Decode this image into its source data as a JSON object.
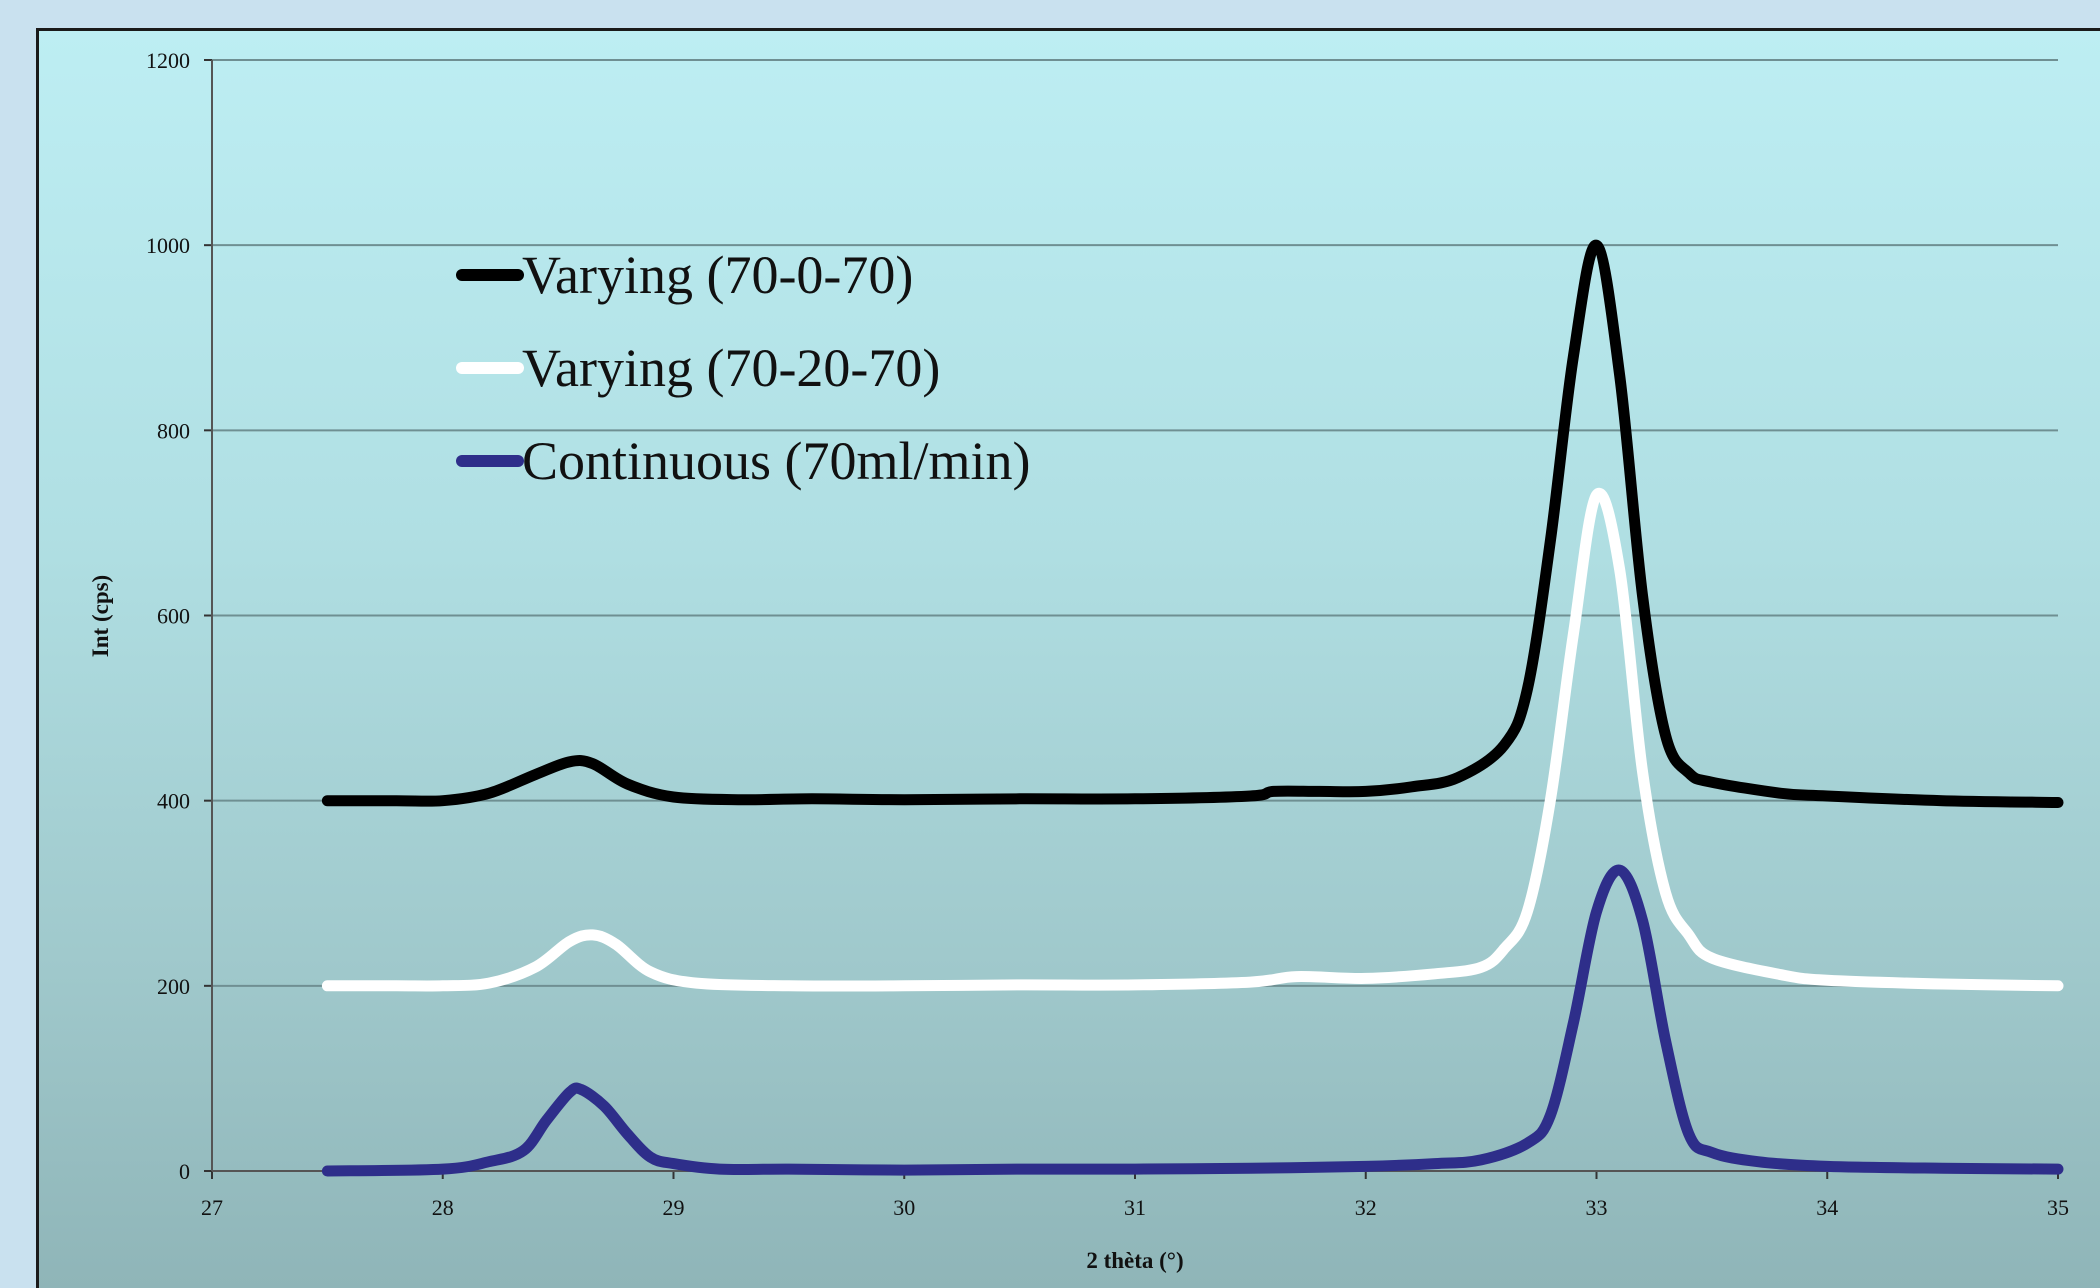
{
  "chart_data": {
    "type": "line",
    "xlabel": "2 thèta (°)",
    "ylabel": "Int (cps)",
    "xlim": [
      27,
      35
    ],
    "ylim": [
      0,
      1200
    ],
    "xticks": [
      "27",
      "28",
      "29",
      "30",
      "31",
      "32",
      "33",
      "34",
      "35"
    ],
    "yticks": [
      "0",
      "200",
      "400",
      "600",
      "800",
      "1000",
      "1200"
    ],
    "grid": "horizontal",
    "legend_position": "upper-left",
    "series": [
      {
        "name": "Varying (70-0-70)",
        "color": "#000000",
        "x": [
          27.5,
          27.8,
          28.0,
          28.2,
          28.4,
          28.55,
          28.65,
          28.8,
          29.0,
          29.3,
          29.6,
          30.0,
          30.5,
          31.0,
          31.5,
          31.6,
          31.8,
          32.0,
          32.2,
          32.4,
          32.6,
          32.7,
          32.8,
          32.9,
          33.0,
          33.1,
          33.2,
          33.3,
          33.4,
          33.5,
          33.8,
          34.0,
          34.5,
          35.0
        ],
        "y": [
          400,
          400,
          400,
          408,
          428,
          442,
          440,
          418,
          404,
          401,
          402,
          401,
          402,
          402,
          405,
          410,
          410,
          410,
          415,
          425,
          460,
          520,
          680,
          880,
          1000,
          860,
          620,
          470,
          430,
          420,
          408,
          405,
          400,
          398
        ]
      },
      {
        "name": "Varying (70-20-70)",
        "color": "#ffffff",
        "x": [
          27.5,
          27.8,
          28.0,
          28.2,
          28.4,
          28.55,
          28.65,
          28.75,
          28.9,
          29.1,
          29.5,
          30.0,
          30.5,
          31.0,
          31.5,
          31.7,
          32.0,
          32.3,
          32.5,
          32.6,
          32.7,
          32.8,
          32.9,
          33.0,
          33.1,
          33.2,
          33.3,
          33.4,
          33.5,
          33.8,
          34.0,
          34.5,
          35.0
        ],
        "y": [
          200,
          200,
          200,
          203,
          220,
          248,
          255,
          245,
          215,
          203,
          200,
          200,
          201,
          201,
          204,
          210,
          208,
          213,
          220,
          240,
          280,
          400,
          580,
          730,
          650,
          430,
          300,
          255,
          230,
          212,
          206,
          202,
          200
        ]
      },
      {
        "name": "Continuous (70ml/min)",
        "color": "#2e2e8a",
        "x": [
          27.5,
          28.0,
          28.2,
          28.35,
          28.45,
          28.55,
          28.6,
          28.7,
          28.8,
          28.9,
          29.0,
          29.2,
          29.5,
          30.0,
          30.5,
          31.0,
          31.5,
          32.0,
          32.3,
          32.5,
          32.7,
          32.8,
          32.9,
          33.0,
          33.1,
          33.2,
          33.3,
          33.4,
          33.5,
          33.7,
          34.0,
          34.5,
          35.0
        ],
        "y": [
          0,
          2,
          10,
          22,
          55,
          85,
          88,
          70,
          40,
          15,
          8,
          2,
          2,
          1,
          2,
          2,
          3,
          5,
          8,
          12,
          30,
          60,
          160,
          280,
          325,
          270,
          140,
          40,
          20,
          10,
          5,
          3,
          2
        ]
      }
    ]
  }
}
